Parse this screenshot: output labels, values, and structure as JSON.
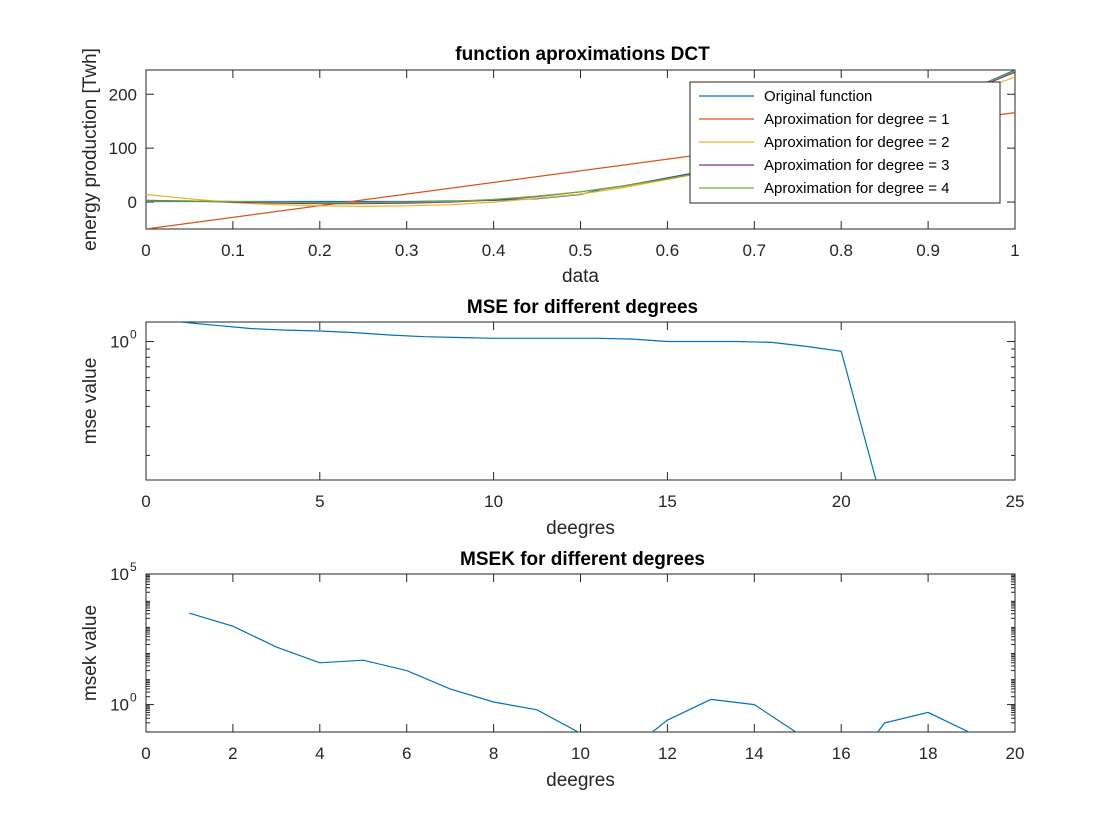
{
  "chart_data": [
    {
      "type": "line",
      "title": "function aproximations DCT",
      "xlabel": "data",
      "ylabel": "energy production [Twh]",
      "xlim": [
        0,
        1
      ],
      "ylim": [
        -50,
        245
      ],
      "xticks": [
        "0",
        "0.1",
        "0.2",
        "0.3",
        "0.4",
        "0.5",
        "0.6",
        "0.7",
        "0.8",
        "0.9",
        "1"
      ],
      "yticks": [
        "0",
        "100",
        "200"
      ],
      "legend_position": "top-right",
      "colors": [
        "#0072BD",
        "#D95319",
        "#EDB120",
        "#7E2F8E",
        "#77AC30"
      ],
      "series": [
        {
          "name": "Original function",
          "x": [
            0,
            0.05,
            0.1,
            0.15,
            0.2,
            0.25,
            0.3,
            0.35,
            0.4,
            0.45,
            0.5,
            0.525,
            0.55,
            0.6,
            0.65,
            0.7,
            0.75,
            0.8,
            0.85,
            0.9,
            0.95,
            1
          ],
          "y": [
            1,
            1,
            1,
            1,
            1,
            1,
            1,
            2,
            3,
            6,
            14,
            24,
            30,
            45,
            60,
            80,
            100,
            125,
            150,
            180,
            210,
            245
          ]
        },
        {
          "name": "Aproximation for degree = 1",
          "x": [
            0,
            1
          ],
          "y": [
            -50,
            166
          ]
        },
        {
          "name": "Aproximation for degree = 2",
          "x": [
            0,
            0.05,
            0.1,
            0.15,
            0.2,
            0.25,
            0.3,
            0.35,
            0.4,
            0.45,
            0.5,
            0.55,
            0.6,
            0.65,
            0.7,
            0.75,
            0.8,
            0.85,
            0.9,
            0.95,
            1
          ],
          "y": [
            14,
            6,
            -1,
            -5,
            -7,
            -8,
            -7,
            -5,
            0,
            7,
            15,
            27,
            42,
            57,
            76,
            97,
            120,
            146,
            173,
            202,
            232
          ]
        },
        {
          "name": "Aproximation for degree = 3",
          "x": [
            0,
            0.05,
            0.1,
            0.15,
            0.2,
            0.25,
            0.3,
            0.35,
            0.4,
            0.45,
            0.5,
            0.55,
            0.6,
            0.65,
            0.7,
            0.75,
            0.8,
            0.85,
            0.9,
            0.95,
            1
          ],
          "y": [
            3,
            2,
            0,
            -2,
            -3,
            -3,
            -2,
            0,
            4,
            10,
            19,
            30,
            44,
            59,
            77,
            98,
            122,
            148,
            177,
            208,
            241
          ]
        },
        {
          "name": "Aproximation for degree = 4",
          "x": [
            0,
            0.05,
            0.1,
            0.15,
            0.2,
            0.25,
            0.3,
            0.35,
            0.4,
            0.45,
            0.5,
            0.55,
            0.6,
            0.65,
            0.7,
            0.75,
            0.8,
            0.85,
            0.9,
            0.95,
            1
          ],
          "y": [
            2,
            2,
            1,
            0,
            -1,
            -1,
            0,
            1,
            5,
            11,
            19,
            30,
            43,
            58,
            76,
            97,
            121,
            148,
            178,
            210,
            243
          ]
        }
      ]
    },
    {
      "type": "line",
      "title": "MSE for different degrees",
      "xlabel": "deegres",
      "ylabel": "mse value",
      "xlim": [
        0,
        25
      ],
      "ylog": true,
      "ylim_exp": [
        -0.85,
        0.12
      ],
      "xticks": [
        "0",
        "5",
        "10",
        "15",
        "20",
        "25"
      ],
      "yticks": [
        {
          "base": "10",
          "exp": "0"
        }
      ],
      "colors": [
        "#0072BD"
      ],
      "series": [
        {
          "x": [
            1,
            2,
            3,
            4,
            5,
            6,
            7,
            8,
            9,
            10,
            11,
            12,
            13,
            14,
            15,
            16,
            17,
            18,
            19,
            20,
            21
          ],
          "y_exp": [
            0.12,
            0.1,
            0.08,
            0.07,
            0.065,
            0.055,
            0.04,
            0.03,
            0.025,
            0.02,
            0.02,
            0.02,
            0.02,
            0.015,
            0.0,
            0.0,
            0.0,
            -0.005,
            -0.03,
            -0.06,
            -0.85
          ]
        }
      ]
    },
    {
      "type": "line",
      "title": "MSEK for different degrees",
      "xlabel": "deegres",
      "ylabel": "msek value",
      "xlim": [
        0,
        20
      ],
      "ylog": true,
      "ylim_exp": [
        -1.05,
        5
      ],
      "xticks": [
        "0",
        "2",
        "4",
        "6",
        "8",
        "10",
        "12",
        "14",
        "16",
        "18",
        "20"
      ],
      "yticks": [
        {
          "base": "10",
          "exp": "0"
        },
        {
          "base": "10",
          "exp": "5"
        }
      ],
      "colors": [
        "#0072BD"
      ],
      "series": [
        {
          "x": [
            1,
            2,
            3,
            4,
            5,
            6,
            7,
            8,
            9,
            10,
            11,
            12,
            13,
            14,
            15,
            16,
            17,
            18,
            19,
            20
          ],
          "y_exp": [
            3.5,
            3.0,
            2.2,
            1.6,
            1.7,
            1.3,
            0.6,
            0.1,
            -0.2,
            -1.1,
            -1.9,
            -0.6,
            0.2,
            0.0,
            -1.1,
            -2.9,
            -0.7,
            -0.3,
            -1.1,
            -1.7
          ]
        }
      ]
    }
  ]
}
